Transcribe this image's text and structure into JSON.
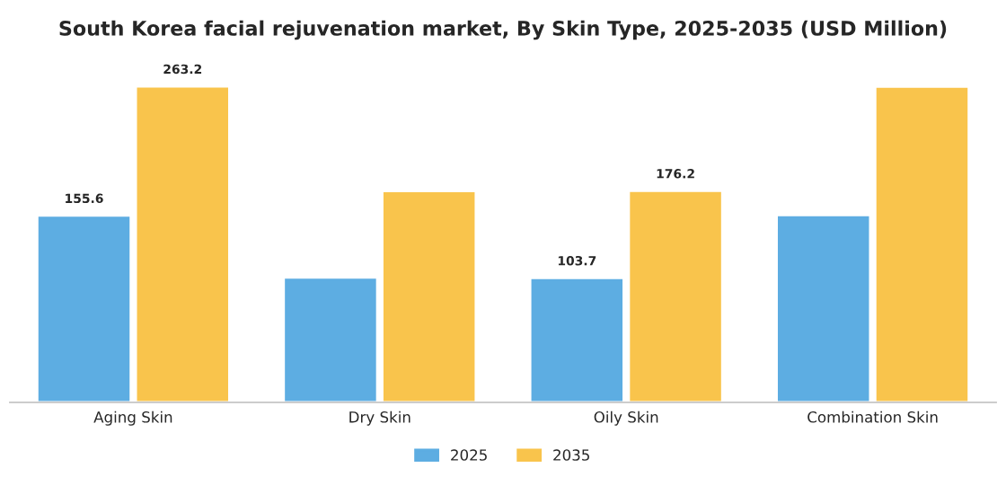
{
  "chart_data": {
    "type": "bar",
    "title": "South Korea facial rejuvenation market, By Skin Type, 2025-2035 (USD Million)",
    "categories": [
      "Aging Skin",
      "Dry Skin",
      "Oily Skin",
      "Combination Skin"
    ],
    "series": [
      {
        "name": "2025",
        "color": "#5dade2",
        "values": [
          155.6,
          104,
          103.7,
          156
        ],
        "value_labels": [
          "155.6",
          null,
          "103.7",
          null
        ]
      },
      {
        "name": "2035",
        "color": "#f9c44c",
        "values": [
          263.2,
          176,
          176.2,
          263
        ],
        "value_labels": [
          "263.2",
          null,
          "176.2",
          null
        ]
      }
    ],
    "legend": "bottom",
    "grid": false
  }
}
